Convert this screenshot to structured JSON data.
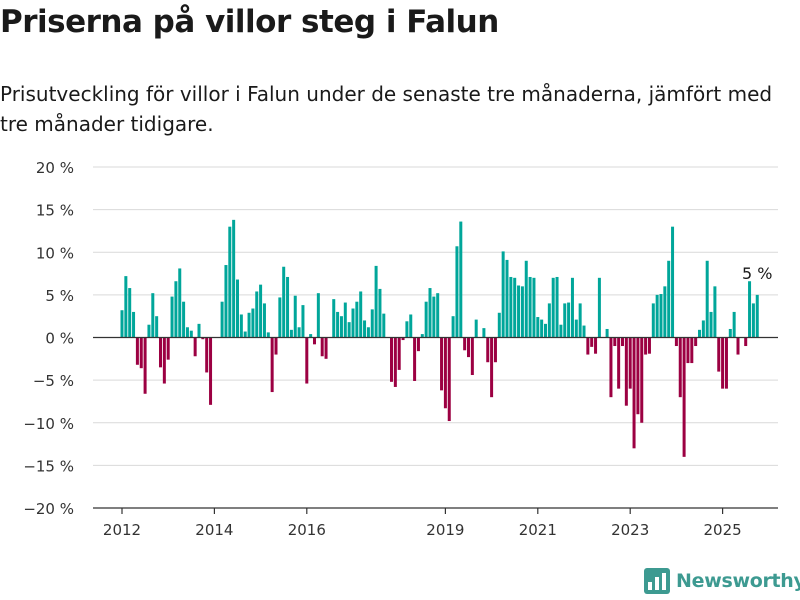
{
  "header": {
    "title": "Priserna på villor steg i Falun",
    "subtitle": "Prisutveckling för villor i Falun under de senaste tre månaderna, jämfört med tre månader tidigare."
  },
  "brand": {
    "name": "Newsworthy",
    "color": "#3d9a91"
  },
  "colors": {
    "positive": "#00a69a",
    "negative": "#9c0042",
    "grid": "#d9d9d9",
    "zero": "#333333"
  },
  "chart_data": {
    "type": "bar",
    "ylim": [
      -20,
      20
    ],
    "y_ticks": [
      20,
      15,
      10,
      5,
      0,
      -5,
      -10,
      -15,
      -20
    ],
    "y_tick_labels": [
      "20 %",
      "15 %",
      "10 %",
      "5 %",
      "0 %",
      "−5 %",
      "−10 %",
      "−15 %",
      "−20 %"
    ],
    "x_ticks": [
      2012,
      2014,
      2016,
      2019,
      2021,
      2023,
      2025
    ],
    "x_tick_labels": [
      "2012",
      "2014",
      "2016",
      "2019",
      "2021",
      "2023",
      "2025"
    ],
    "x_start": 2012,
    "annotation": "5 %",
    "values": [
      3.2,
      7.2,
      5.8,
      3.0,
      -3.2,
      -3.6,
      -6.6,
      1.5,
      5.2,
      2.5,
      -3.5,
      -5.4,
      -2.6,
      4.8,
      6.6,
      8.1,
      4.2,
      1.2,
      0.8,
      -2.2,
      1.6,
      -0.2,
      -4.1,
      -7.9,
      0.0,
      0.0,
      4.2,
      8.5,
      13.0,
      13.8,
      6.8,
      2.7,
      0.7,
      2.9,
      3.4,
      5.4,
      6.2,
      4.0,
      0.6,
      -6.4,
      -2.0,
      4.7,
      8.3,
      7.1,
      0.9,
      4.9,
      1.2,
      3.8,
      -5.4,
      0.4,
      -0.8,
      5.2,
      -2.2,
      -2.5,
      0.0,
      4.5,
      3.0,
      2.5,
      4.1,
      1.8,
      3.4,
      4.2,
      5.4,
      2.0,
      1.2,
      3.3,
      8.4,
      5.7,
      2.8,
      0.0,
      -5.2,
      -5.8,
      -3.8,
      -0.3,
      1.9,
      2.7,
      -5.1,
      -1.6,
      0.4,
      4.2,
      5.8,
      4.8,
      5.2,
      -6.2,
      -8.3,
      -9.8,
      2.5,
      10.7,
      13.6,
      -1.5,
      -2.3,
      -4.4,
      2.1,
      0.0,
      1.1,
      -2.9,
      -7.0,
      -2.9,
      2.9,
      10.1,
      9.1,
      7.1,
      7.0,
      6.1,
      6.0,
      9.0,
      7.1,
      7.0,
      2.4,
      2.1,
      1.6,
      4.0,
      7.0,
      7.1,
      1.5,
      4.0,
      4.1,
      7.0,
      2.1,
      4.0,
      1.4,
      -2.0,
      -1.1,
      -1.9,
      7.0,
      0.0,
      1.0,
      -7.0,
      -1.0,
      -6.0,
      -1.0,
      -8.0,
      -6.0,
      -13.0,
      -9.0,
      -10.0,
      -2.0,
      -1.9,
      4.0,
      5.0,
      5.1,
      6.0,
      9.0,
      13.0,
      -1.0,
      -7.0,
      -14.0,
      -3.0,
      -3.0,
      -1.0,
      0.9,
      2.0,
      9.0,
      3.0,
      6.0,
      -4.0,
      -6.0,
      -6.0,
      1.0,
      3.0,
      -2.0,
      0.0,
      -1.0,
      6.6,
      4.0,
      5.0
    ]
  }
}
